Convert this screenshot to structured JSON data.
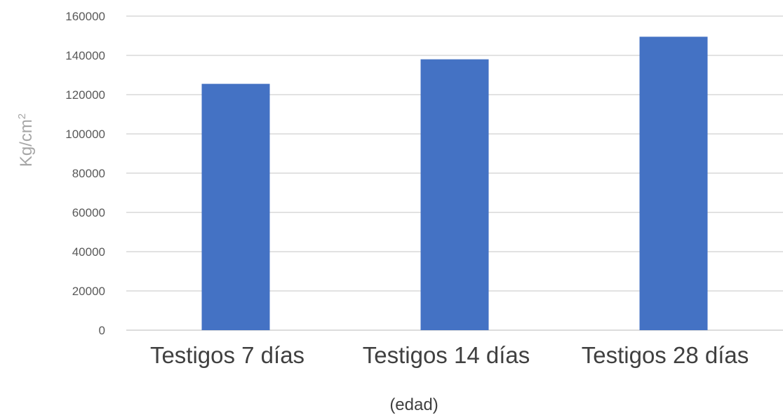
{
  "chart_data": {
    "type": "bar",
    "categories": [
      "Testigos 7 días",
      "Testigos 14 días",
      "Testigos 28 días"
    ],
    "values": [
      125500,
      138000,
      149500
    ],
    "ylim": [
      0,
      160000
    ],
    "yticks": [
      "0",
      "20000",
      "40000",
      "60000",
      "80000",
      "100000",
      "120000",
      "140000",
      "160000"
    ],
    "xlabel": "(edad)",
    "ylabel_base": "Kg/cm",
    "ylabel_sup": "2",
    "grid": true,
    "legend": "none",
    "bar_color": "#4472c4"
  }
}
